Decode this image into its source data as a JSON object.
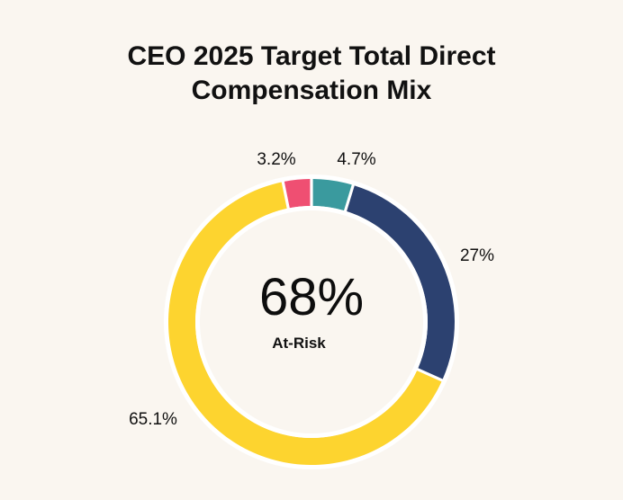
{
  "chart_data": {
    "type": "pie",
    "title_lines": [
      "CEO 2025 Target Total Direct",
      "Compensation Mix"
    ],
    "center_value": "68%",
    "center_caption": "At-Risk",
    "categories": [
      "",
      "",
      "",
      ""
    ],
    "values": [
      4.7,
      27,
      65.1,
      3.2
    ],
    "value_labels": [
      "4.7%",
      "27%",
      "65.1%",
      "3.2%"
    ],
    "colors": [
      "#3a9a9e",
      "#2c4170",
      "#fdd42f",
      "#ef4f72"
    ],
    "start_angle_deg": 0
  }
}
